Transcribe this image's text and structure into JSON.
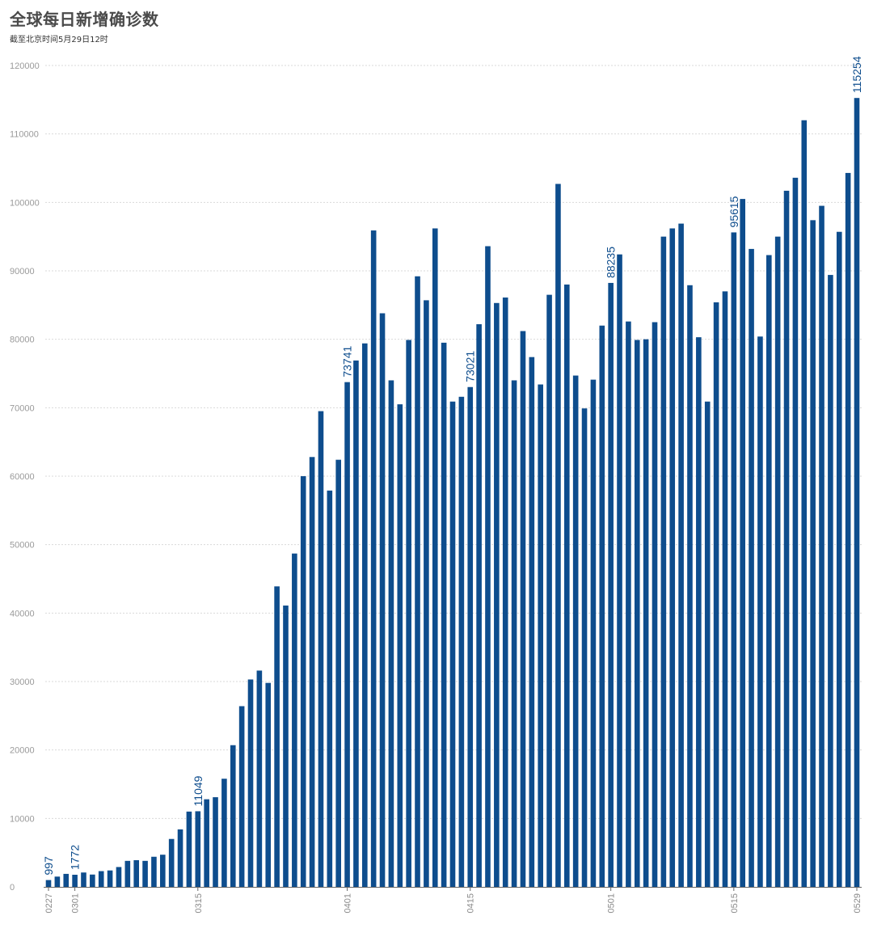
{
  "chart_data": {
    "type": "bar",
    "title": "全球每日新增确诊数",
    "subtitle": "截至北京时间5月29日12时",
    "xlabel": "",
    "ylabel": "",
    "ylim": [
      0,
      120000
    ],
    "yticks": [
      0,
      10000,
      20000,
      30000,
      40000,
      50000,
      60000,
      70000,
      80000,
      90000,
      100000,
      110000,
      120000
    ],
    "grid": true,
    "bar_color": "#0e4d8d",
    "categories": [
      "0227",
      "0228",
      "0229",
      "0301",
      "0302",
      "0303",
      "0304",
      "0305",
      "0306",
      "0307",
      "0308",
      "0309",
      "0310",
      "0311",
      "0312",
      "0313",
      "0314",
      "0315",
      "0316",
      "0317",
      "0318",
      "0319",
      "0320",
      "0321",
      "0322",
      "0323",
      "0324",
      "0325",
      "0326",
      "0327",
      "0328",
      "0329",
      "0330",
      "0331",
      "0401",
      "0402",
      "0403",
      "0404",
      "0405",
      "0406",
      "0407",
      "0408",
      "0409",
      "0410",
      "0411",
      "0412",
      "0413",
      "0414",
      "0415",
      "0416",
      "0417",
      "0418",
      "0419",
      "0420",
      "0421",
      "0422",
      "0423",
      "0424",
      "0425",
      "0426",
      "0427",
      "0428",
      "0429",
      "0430",
      "0501",
      "0502",
      "0503",
      "0504",
      "0505",
      "0506",
      "0507",
      "0508",
      "0509",
      "0510",
      "0511",
      "0512",
      "0513",
      "0514",
      "0515",
      "0516",
      "0517",
      "0518",
      "0519",
      "0520",
      "0521",
      "0522",
      "0523",
      "0524",
      "0525",
      "0526",
      "0527",
      "0528",
      "0529"
    ],
    "values": [
      997,
      1500,
      1900,
      1772,
      2100,
      1800,
      2300,
      2400,
      2900,
      3800,
      3900,
      3800,
      4400,
      4700,
      7000,
      8400,
      11000,
      11049,
      12800,
      13100,
      15800,
      20700,
      26400,
      30300,
      31600,
      29800,
      43900,
      41100,
      48700,
      60000,
      62800,
      69500,
      57900,
      62400,
      73741,
      76900,
      79400,
      95900,
      83800,
      74000,
      70500,
      79900,
      89200,
      85700,
      96200,
      79500,
      70900,
      71600,
      73021,
      82200,
      93600,
      85300,
      86100,
      74000,
      81200,
      77400,
      73400,
      86500,
      102700,
      88000,
      74700,
      69900,
      74100,
      82000,
      88235,
      92400,
      82600,
      79900,
      80000,
      82500,
      95000,
      96200,
      96900,
      87900,
      80300,
      70900,
      85400,
      87000,
      95615,
      100500,
      93200,
      80400,
      92300,
      95000,
      101700,
      103600,
      112000,
      97400,
      99500,
      89400,
      95700,
      104300,
      115254
    ],
    "data_labels": [
      {
        "category": "0227",
        "text": "997"
      },
      {
        "category": "0301",
        "text": "1772"
      },
      {
        "category": "0315",
        "text": "11049"
      },
      {
        "category": "0401",
        "text": "73741"
      },
      {
        "category": "0415",
        "text": "73021"
      },
      {
        "category": "0501",
        "text": "88235"
      },
      {
        "category": "0515",
        "text": "95615"
      },
      {
        "category": "0529",
        "text": "115254"
      }
    ],
    "xtick_labels": [
      "0227",
      "0301",
      "0315",
      "0401",
      "0415",
      "0501",
      "0515",
      "0529"
    ]
  }
}
